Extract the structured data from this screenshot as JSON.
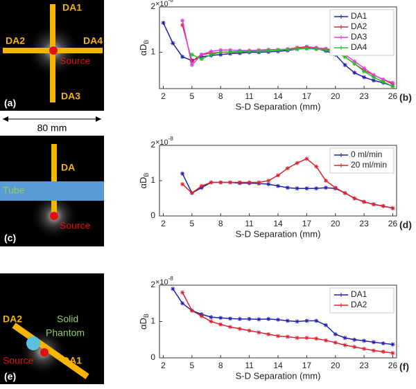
{
  "diagrams": [
    {
      "labels": [
        "DA1",
        "DA2",
        "DA4",
        "Source",
        "DA3",
        "(a)"
      ],
      "scale": "80 mm"
    },
    {
      "labels": [
        "DA",
        "Tube",
        "Source",
        "(c)"
      ]
    },
    {
      "labels": [
        "DA2",
        "Solid",
        "Phantom",
        "Source",
        "DA1",
        "(e)"
      ]
    }
  ],
  "chart_data": [
    {
      "type": "line",
      "panel_label": "(b)",
      "x_label": "S-D Separation (mm)",
      "y_label": "αD",
      "y_label_sub": "B",
      "y_multiplier": "×10",
      "y_multiplier_exp": "-8",
      "x": [
        2,
        3,
        4,
        5,
        6,
        7,
        8,
        9,
        10,
        11,
        12,
        13,
        14,
        15,
        16,
        17,
        18,
        19,
        20,
        21,
        22,
        23,
        24,
        25,
        26
      ],
      "xlim": [
        1.6,
        26.4
      ],
      "xticks": [
        2,
        5,
        8,
        11,
        14,
        17,
        20,
        23,
        26
      ],
      "ylim": [
        0.2,
        2
      ],
      "yticks": [
        1,
        2
      ],
      "legend": "upper right",
      "series": [
        {
          "name": "DA1",
          "color": "#1f1fb4",
          "values": [
            1.65,
            1.2,
            0.9,
            0.82,
            0.9,
            0.93,
            0.95,
            0.97,
            0.98,
            1.0,
            1.0,
            1.01,
            1.02,
            1.04,
            1.07,
            1.1,
            1.08,
            1.03,
            0.95,
            0.72,
            0.55,
            0.45,
            0.38,
            0.33,
            0.25
          ]
        },
        {
          "name": "DA2",
          "color": "#e0202a",
          "values": [
            null,
            null,
            1.6,
            0.8,
            0.95,
            0.98,
            1.0,
            1.0,
            1.01,
            1.02,
            1.03,
            1.04,
            1.05,
            1.07,
            1.1,
            1.12,
            1.1,
            1.07,
            1.02,
            0.9,
            0.75,
            0.6,
            0.5,
            0.4,
            0.3
          ]
        },
        {
          "name": "DA3",
          "color": "#e03ce0",
          "values": [
            null,
            null,
            1.7,
            0.72,
            0.95,
            1.02,
            1.05,
            1.05,
            1.04,
            1.04,
            1.05,
            1.06,
            1.06,
            1.07,
            1.08,
            1.1,
            1.1,
            1.08,
            1.05,
            0.95,
            0.8,
            0.65,
            0.5,
            0.4,
            0.33
          ]
        },
        {
          "name": "DA4",
          "color": "#22c02a",
          "values": [
            null,
            null,
            null,
            0.95,
            0.85,
            0.95,
            1.0,
            1.01,
            1.02,
            1.02,
            1.03,
            1.04,
            1.05,
            1.06,
            1.07,
            1.08,
            1.07,
            1.05,
            1.0,
            0.9,
            0.75,
            0.58,
            0.45,
            0.35,
            0.25
          ]
        }
      ]
    },
    {
      "type": "line",
      "panel_label": "(d)",
      "x_label": "S-D Separation (mm)",
      "y_label": "αD",
      "y_label_sub": "B",
      "y_multiplier": "×10",
      "y_multiplier_exp": "-8",
      "x": [
        2,
        3,
        4,
        5,
        6,
        7,
        8,
        9,
        10,
        11,
        12,
        13,
        14,
        15,
        16,
        17,
        18,
        19,
        20,
        21,
        22,
        23,
        24,
        25,
        26
      ],
      "xlim": [
        1.6,
        26.4
      ],
      "xticks": [
        2,
        5,
        8,
        11,
        14,
        17,
        20,
        23,
        26
      ],
      "ylim": [
        0,
        2
      ],
      "yticks": [
        0,
        1,
        2
      ],
      "legend": "upper right",
      "series": [
        {
          "name": "0 ml/min",
          "color": "#1f1fb4",
          "values": [
            null,
            null,
            1.2,
            0.65,
            0.8,
            0.95,
            0.95,
            0.95,
            0.93,
            0.93,
            0.92,
            0.9,
            0.85,
            0.8,
            0.78,
            0.78,
            0.78,
            0.8,
            0.78,
            0.65,
            0.5,
            0.4,
            0.33,
            0.28,
            0.22
          ]
        },
        {
          "name": "20 ml/min",
          "color": "#e0202a",
          "values": [
            null,
            null,
            0.9,
            0.65,
            0.85,
            0.95,
            0.95,
            0.95,
            0.95,
            0.95,
            0.95,
            1.0,
            1.15,
            1.35,
            1.5,
            1.62,
            1.4,
            1.0,
            0.8,
            0.65,
            0.5,
            0.4,
            0.33,
            0.28,
            0.22
          ]
        }
      ]
    },
    {
      "type": "line",
      "panel_label": "(f)",
      "x_label": "S-D Separation (mm)",
      "y_label": "αD",
      "y_label_sub": "B",
      "y_multiplier": "×10",
      "y_multiplier_exp": "-8",
      "x": [
        2,
        3,
        4,
        5,
        6,
        7,
        8,
        9,
        10,
        11,
        12,
        13,
        14,
        15,
        16,
        17,
        18,
        19,
        20,
        21,
        22,
        23,
        24,
        25,
        26
      ],
      "xlim": [
        1.6,
        26.4
      ],
      "xticks": [
        2,
        5,
        8,
        11,
        14,
        17,
        20,
        23,
        26
      ],
      "ylim": [
        0,
        2
      ],
      "yticks": [
        0,
        1,
        2
      ],
      "legend": "upper right",
      "series": [
        {
          "name": "DA1",
          "color": "#1f1fb4",
          "values": [
            null,
            1.9,
            1.5,
            1.3,
            1.2,
            1.12,
            1.1,
            1.08,
            1.07,
            1.07,
            1.06,
            1.07,
            1.05,
            1.02,
            1.0,
            1.02,
            1.02,
            0.9,
            0.65,
            0.55,
            0.5,
            0.47,
            0.43,
            0.4,
            0.37
          ]
        },
        {
          "name": "DA2",
          "color": "#e0202a",
          "values": [
            null,
            null,
            1.8,
            1.3,
            1.15,
            1.0,
            0.92,
            0.85,
            0.8,
            0.75,
            0.7,
            0.65,
            0.6,
            0.58,
            0.55,
            0.55,
            0.53,
            0.48,
            0.42,
            0.35,
            0.3,
            0.25,
            0.2,
            0.17,
            0.13
          ]
        }
      ]
    }
  ]
}
